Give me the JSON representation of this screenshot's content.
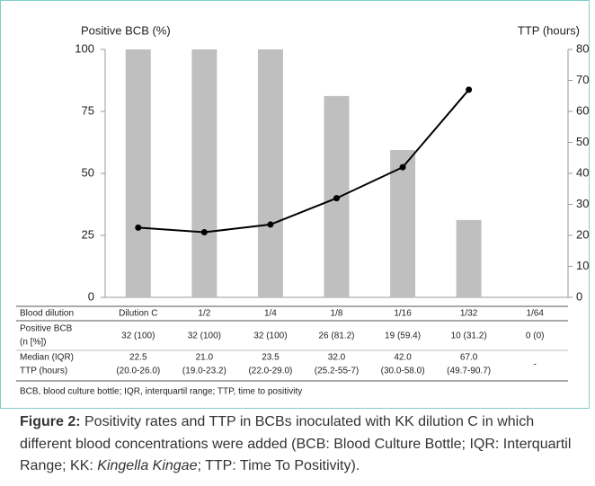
{
  "chart_data": {
    "type": "bar",
    "y_label": "Positive BCB (%)",
    "y2_label": "TTP (hours)",
    "categories": [
      "Dilution C",
      "1/2",
      "1/4",
      "1/8",
      "1/16",
      "1/32",
      "1/64"
    ],
    "series": [
      {
        "type": "bar",
        "color": "#bfbfbf",
        "values": [
          100,
          100,
          100,
          81.2,
          59.4,
          31.2,
          0
        ]
      },
      {
        "type": "line",
        "axis": "y2",
        "color": "#000000",
        "values": [
          22.5,
          21.0,
          23.5,
          32.0,
          42.0,
          67.0,
          null
        ],
        "value_labels": [
          "22.5",
          "21.0",
          "23.5",
          "32.0",
          "42.0",
          "67.0",
          "-"
        ]
      }
    ],
    "ylim": [
      0,
      100
    ],
    "yticks": [
      0,
      25,
      50,
      75,
      100
    ],
    "y2lim": [
      0,
      80
    ],
    "y2ticks": [
      0,
      10,
      20,
      30,
      40,
      50,
      60,
      70,
      80
    ]
  },
  "table": {
    "header": "Blood dilution",
    "rows": [
      {
        "label": [
          "Positive BCB",
          "(n [%])"
        ],
        "cells": [
          "32 (100)",
          "32 (100)",
          "32 (100)",
          "26 (81.2)",
          "19 (59.4)",
          "10 (31.2)",
          "0 (0)"
        ]
      },
      {
        "label": [
          "Median (IQR)",
          "TTP (hours)"
        ],
        "cells": [
          "(20.0-26.0)",
          "(19.0-23.2)",
          "(22.0-29.0)",
          "(25.2-55-7)",
          "(30.0-58.0)",
          "(49.7-90.7)"
        ]
      }
    ],
    "footnote": "BCB, blood culture bottle; IQR, interquartil range; TTP, time to positivity"
  },
  "caption": {
    "label": "Figure 2:",
    "text": " Positivity rates and TTP in BCBs inoculated with KK dilution C in which different blood concentrations were added (BCB: Blood Culture Bottle; IQR: Interquartil Range; KK: ",
    "italic": "Kingella Kingae",
    "after": "; TTP: Time To Positivity)."
  }
}
